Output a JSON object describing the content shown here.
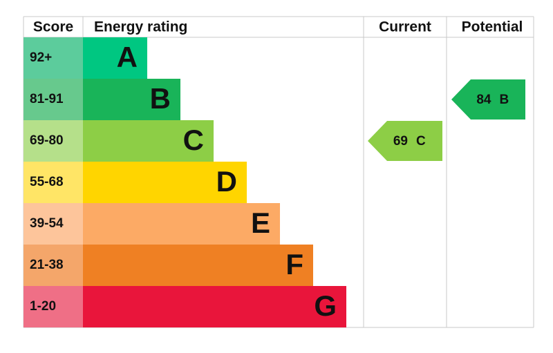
{
  "header": {
    "score": "Score",
    "rating": "Energy rating",
    "current": "Current",
    "potential": "Potential"
  },
  "rows": [
    {
      "score": "92+",
      "band": "A"
    },
    {
      "score": "81-91",
      "band": "B"
    },
    {
      "score": "69-80",
      "band": "C"
    },
    {
      "score": "55-68",
      "band": "D"
    },
    {
      "score": "39-54",
      "band": "E"
    },
    {
      "score": "21-38",
      "band": "F"
    },
    {
      "score": "1-20",
      "band": "G"
    }
  ],
  "current": {
    "value": "69",
    "band": "C"
  },
  "potential": {
    "value": "84",
    "band": "B"
  }
}
